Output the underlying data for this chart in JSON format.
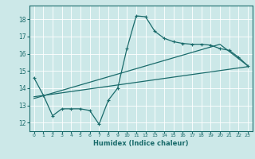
{
  "title": "",
  "xlabel": "Humidex (Indice chaleur)",
  "bg_color": "#cce8e8",
  "line_color": "#1a6b6b",
  "grid_color": "#ffffff",
  "xlim": [
    -0.5,
    23.5
  ],
  "ylim": [
    11.5,
    18.8
  ],
  "xticks": [
    0,
    1,
    2,
    3,
    4,
    5,
    6,
    7,
    8,
    9,
    10,
    11,
    12,
    13,
    14,
    15,
    16,
    17,
    18,
    19,
    20,
    21,
    22,
    23
  ],
  "yticks": [
    12,
    13,
    14,
    15,
    16,
    17,
    18
  ],
  "main_line_x": [
    0,
    1,
    2,
    3,
    4,
    5,
    6,
    7,
    8,
    9,
    10,
    11,
    12,
    13,
    14,
    15,
    16,
    17,
    18,
    19,
    20,
    21,
    22,
    23
  ],
  "main_line_y": [
    14.6,
    13.6,
    12.4,
    12.8,
    12.8,
    12.8,
    12.7,
    11.9,
    13.3,
    14.0,
    16.3,
    18.2,
    18.15,
    17.3,
    16.9,
    16.7,
    16.6,
    16.55,
    16.55,
    16.5,
    16.3,
    16.2,
    15.8,
    15.3
  ],
  "trend1_x": [
    0,
    23
  ],
  "trend1_y": [
    13.5,
    15.25
  ],
  "trend2_x": [
    0,
    20,
    23
  ],
  "trend2_y": [
    13.4,
    16.55,
    15.3
  ]
}
